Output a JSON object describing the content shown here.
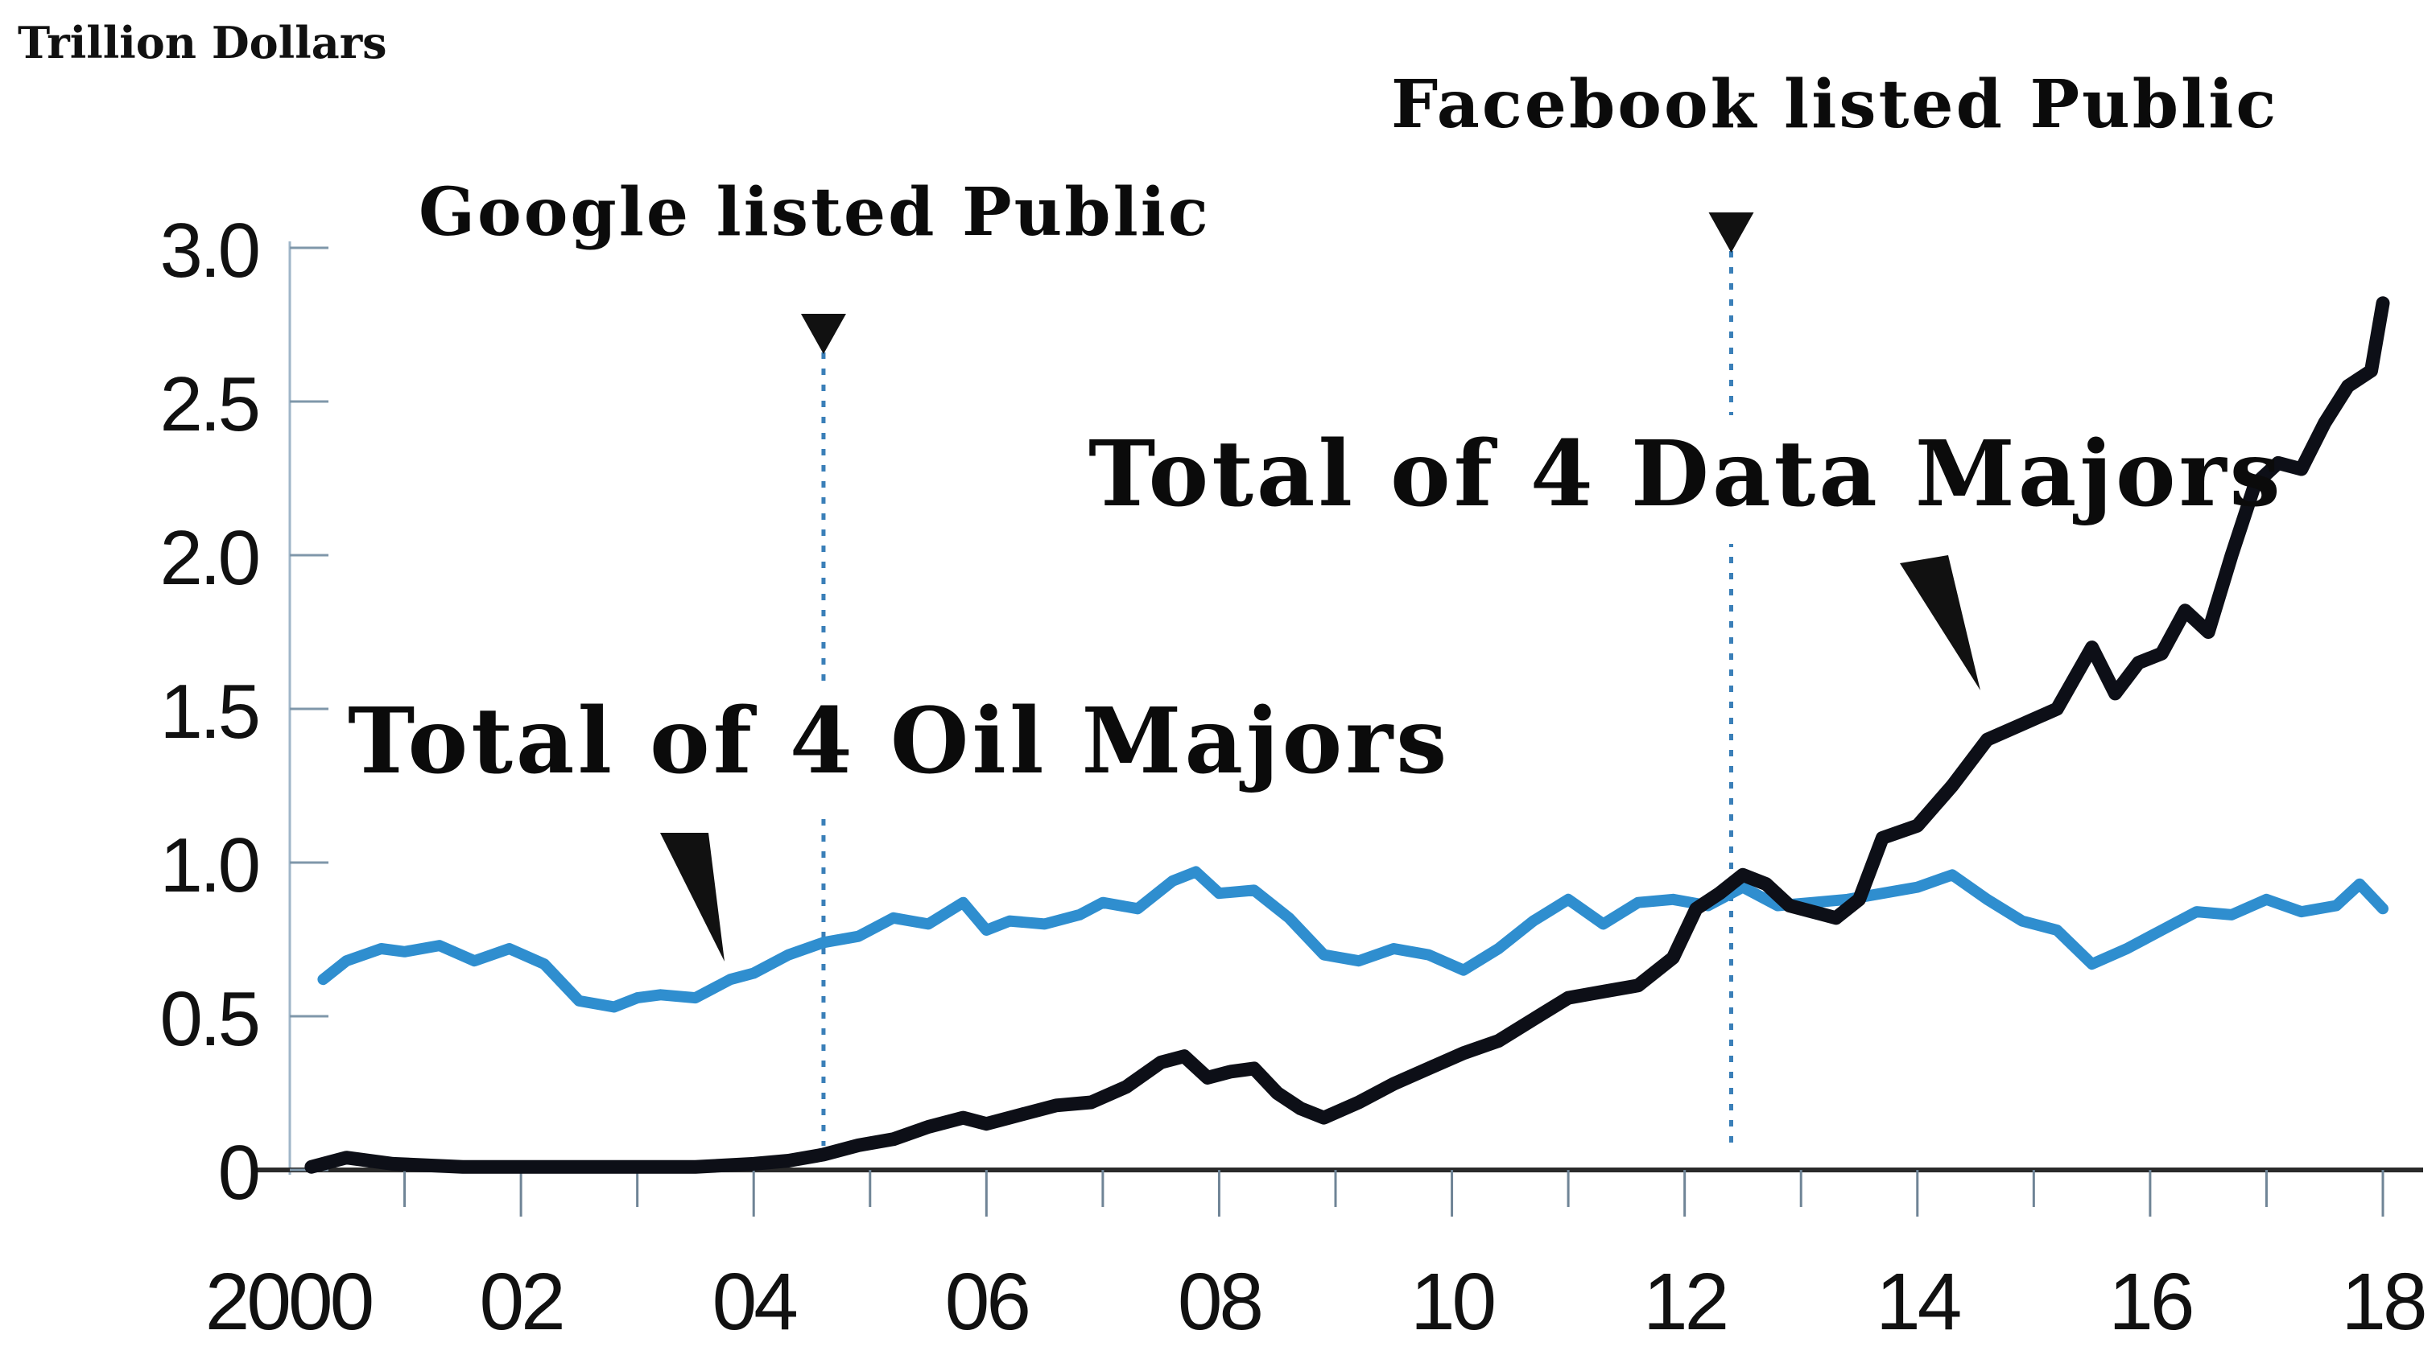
{
  "colors": {
    "oil": "#2f8ecf",
    "data": "#0d0f17",
    "axis": "#2a2a2a",
    "event_line": "#3a7fb8",
    "marker": "#111111"
  },
  "chart_data": {
    "type": "line",
    "title": "",
    "units_label": "Trillion Dollars",
    "xlabel": "",
    "ylabel": "Trillion Dollars",
    "ylim": [
      0,
      3.0
    ],
    "xlim": [
      2000,
      2018
    ],
    "grid": false,
    "y_ticks": [
      {
        "value": 0,
        "label": "0"
      },
      {
        "value": 0.5,
        "label": "0.5"
      },
      {
        "value": 1.0,
        "label": "1.0"
      },
      {
        "value": 1.5,
        "label": "1.5"
      },
      {
        "value": 2.0,
        "label": "2.0"
      },
      {
        "value": 2.5,
        "label": "2.5"
      },
      {
        "value": 3.0,
        "label": "3.0"
      }
    ],
    "x_ticks": [
      {
        "value": 2000,
        "label": "2000"
      },
      {
        "value": 2002,
        "label": "02"
      },
      {
        "value": 2004,
        "label": "04"
      },
      {
        "value": 2006,
        "label": "06"
      },
      {
        "value": 2008,
        "label": "08"
      },
      {
        "value": 2010,
        "label": "10"
      },
      {
        "value": 2012,
        "label": "12"
      },
      {
        "value": 2014,
        "label": "14"
      },
      {
        "value": 2016,
        "label": "16"
      },
      {
        "value": 2018,
        "label": "18"
      }
    ],
    "events": [
      {
        "x": 2004.6,
        "label": "Google listed Public"
      },
      {
        "x": 2012.4,
        "label": "Facebook listed Public"
      }
    ],
    "series": [
      {
        "name": "Total of 4 Oil Majors",
        "x": [
          2000.3,
          2000.5,
          2000.8,
          2001.0,
          2001.3,
          2001.6,
          2001.9,
          2002.2,
          2002.5,
          2002.8,
          2003.0,
          2003.2,
          2003.5,
          2003.8,
          2004.0,
          2004.3,
          2004.6,
          2004.9,
          2005.2,
          2005.5,
          2005.8,
          2006.0,
          2006.2,
          2006.5,
          2006.8,
          2007.0,
          2007.3,
          2007.6,
          2007.8,
          2008.0,
          2008.3,
          2008.6,
          2008.9,
          2009.2,
          2009.5,
          2009.8,
          2010.1,
          2010.4,
          2010.7,
          2011.0,
          2011.3,
          2011.6,
          2011.9,
          2012.2,
          2012.5,
          2012.8,
          2013.1,
          2013.4,
          2013.7,
          2014.0,
          2014.3,
          2014.6,
          2014.9,
          2015.2,
          2015.5,
          2015.8,
          2016.1,
          2016.4,
          2016.7,
          2017.0,
          2017.3,
          2017.6,
          2017.8,
          2018.0
        ],
        "y": [
          0.62,
          0.68,
          0.72,
          0.71,
          0.73,
          0.68,
          0.72,
          0.67,
          0.55,
          0.53,
          0.56,
          0.57,
          0.56,
          0.62,
          0.64,
          0.7,
          0.74,
          0.76,
          0.82,
          0.8,
          0.87,
          0.78,
          0.81,
          0.8,
          0.83,
          0.87,
          0.85,
          0.94,
          0.97,
          0.9,
          0.91,
          0.82,
          0.7,
          0.68,
          0.72,
          0.7,
          0.65,
          0.72,
          0.81,
          0.88,
          0.8,
          0.87,
          0.88,
          0.86,
          0.92,
          0.86,
          0.87,
          0.88,
          0.9,
          0.92,
          0.96,
          0.88,
          0.81,
          0.78,
          0.67,
          0.72,
          0.78,
          0.84,
          0.83,
          0.88,
          0.84,
          0.86,
          0.93,
          0.85
        ]
      },
      {
        "name": "Total of 4 Data Majors",
        "x": [
          2000.2,
          2000.5,
          2000.9,
          2001.5,
          2002.0,
          2002.5,
          2003.0,
          2003.5,
          2004.0,
          2004.3,
          2004.6,
          2004.9,
          2005.2,
          2005.5,
          2005.8,
          2006.0,
          2006.3,
          2006.6,
          2006.9,
          2007.2,
          2007.5,
          2007.7,
          2007.9,
          2008.1,
          2008.3,
          2008.5,
          2008.7,
          2008.9,
          2009.2,
          2009.5,
          2009.8,
          2010.1,
          2010.4,
          2010.7,
          2011.0,
          2011.3,
          2011.6,
          2011.9,
          2012.1,
          2012.3,
          2012.5,
          2012.7,
          2012.9,
          2013.1,
          2013.3,
          2013.5,
          2013.7,
          2014.0,
          2014.3,
          2014.6,
          2014.9,
          2015.2,
          2015.5,
          2015.7,
          2015.9,
          2016.1,
          2016.3,
          2016.5,
          2016.7,
          2016.9,
          2017.1,
          2017.3,
          2017.5,
          2017.7,
          2017.9,
          2018.0
        ],
        "y": [
          0.01,
          0.04,
          0.02,
          0.01,
          0.01,
          0.01,
          0.01,
          0.01,
          0.02,
          0.03,
          0.05,
          0.08,
          0.1,
          0.14,
          0.17,
          0.15,
          0.18,
          0.21,
          0.22,
          0.27,
          0.35,
          0.37,
          0.3,
          0.32,
          0.33,
          0.25,
          0.2,
          0.17,
          0.22,
          0.28,
          0.33,
          0.38,
          0.42,
          0.49,
          0.56,
          0.58,
          0.6,
          0.69,
          0.85,
          0.9,
          0.96,
          0.93,
          0.86,
          0.84,
          0.82,
          0.88,
          1.08,
          1.12,
          1.25,
          1.4,
          1.45,
          1.5,
          1.7,
          1.55,
          1.65,
          1.68,
          1.82,
          1.75,
          2.0,
          2.23,
          2.3,
          2.28,
          2.43,
          2.55,
          2.6,
          2.82
        ]
      }
    ]
  }
}
